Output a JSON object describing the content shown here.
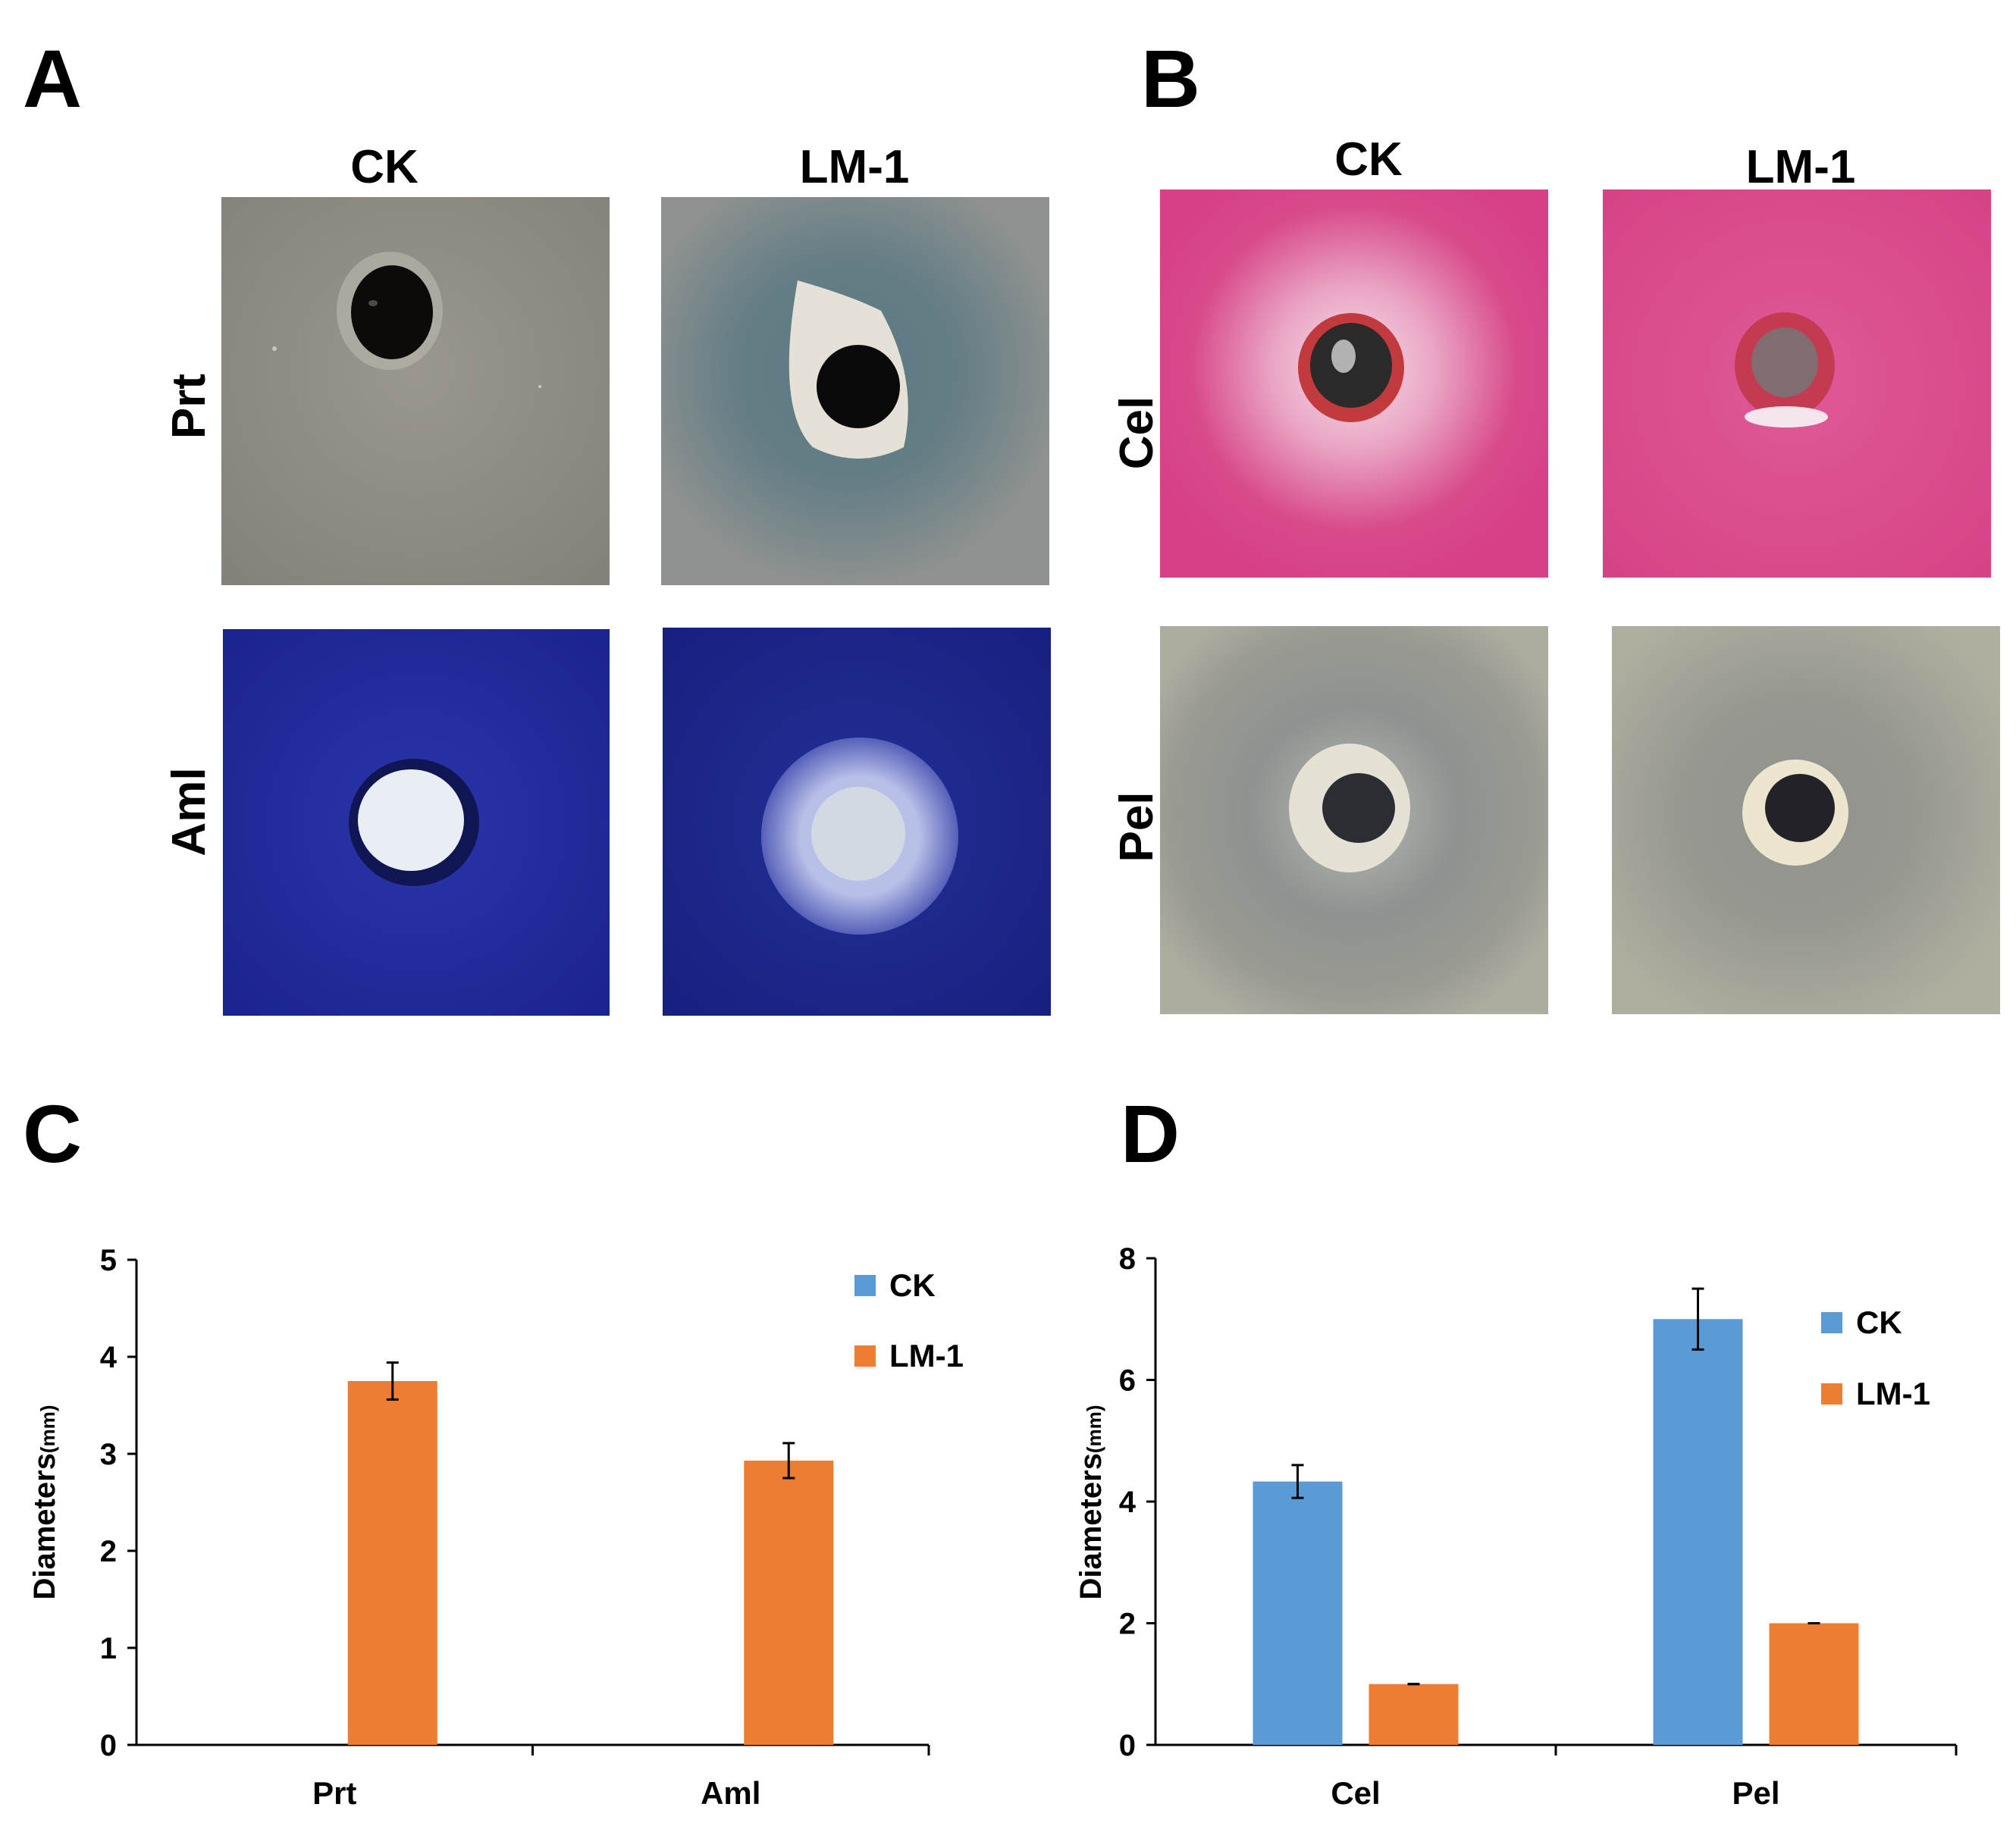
{
  "panels": {
    "A": {
      "letter": "A",
      "columns": [
        "CK",
        "LM-1"
      ],
      "rows": [
        "Prt",
        "Aml"
      ]
    },
    "B": {
      "letter": "B",
      "columns": [
        "CK",
        "LM-1"
      ],
      "rows": [
        "Cel",
        "Pel"
      ]
    },
    "C": {
      "letter": "C"
    },
    "D": {
      "letter": "D"
    }
  },
  "colors": {
    "ck": "#5b9bd5",
    "lm1": "#ed7d31",
    "prt_plate": "#8d8a80",
    "aml_plate": "#1c2a9a",
    "cel_plate": "#d8478c",
    "pel_plate": "#a9a89a"
  },
  "chart_data": [
    {
      "type": "bar",
      "panel": "C",
      "categories": [
        "Prt",
        "Aml"
      ],
      "series": [
        {
          "name": "CK",
          "values": [
            0,
            0
          ],
          "errors": [
            0,
            0
          ]
        },
        {
          "name": "LM-1",
          "values": [
            3.75,
            2.93
          ],
          "errors": [
            0.19,
            0.18
          ]
        }
      ],
      "ylabel": "Diameters",
      "ylabel_unit": "(mm)",
      "ylim": [
        0,
        5
      ],
      "yticks": [
        0,
        1,
        2,
        3,
        4,
        5
      ],
      "legend": "top-right",
      "grid": false
    },
    {
      "type": "bar",
      "panel": "D",
      "categories": [
        "Cel",
        "Pel"
      ],
      "series": [
        {
          "name": "CK",
          "values": [
            4.33,
            7.0
          ],
          "errors": [
            0.27,
            0.5
          ]
        },
        {
          "name": "LM-1",
          "values": [
            1.0,
            2.0
          ],
          "errors": [
            0,
            0
          ]
        }
      ],
      "ylabel": "Diameters",
      "ylabel_unit": "(mm)",
      "ylim": [
        0,
        8
      ],
      "yticks": [
        0,
        2,
        4,
        6,
        8
      ],
      "legend": "right",
      "grid": false
    }
  ]
}
